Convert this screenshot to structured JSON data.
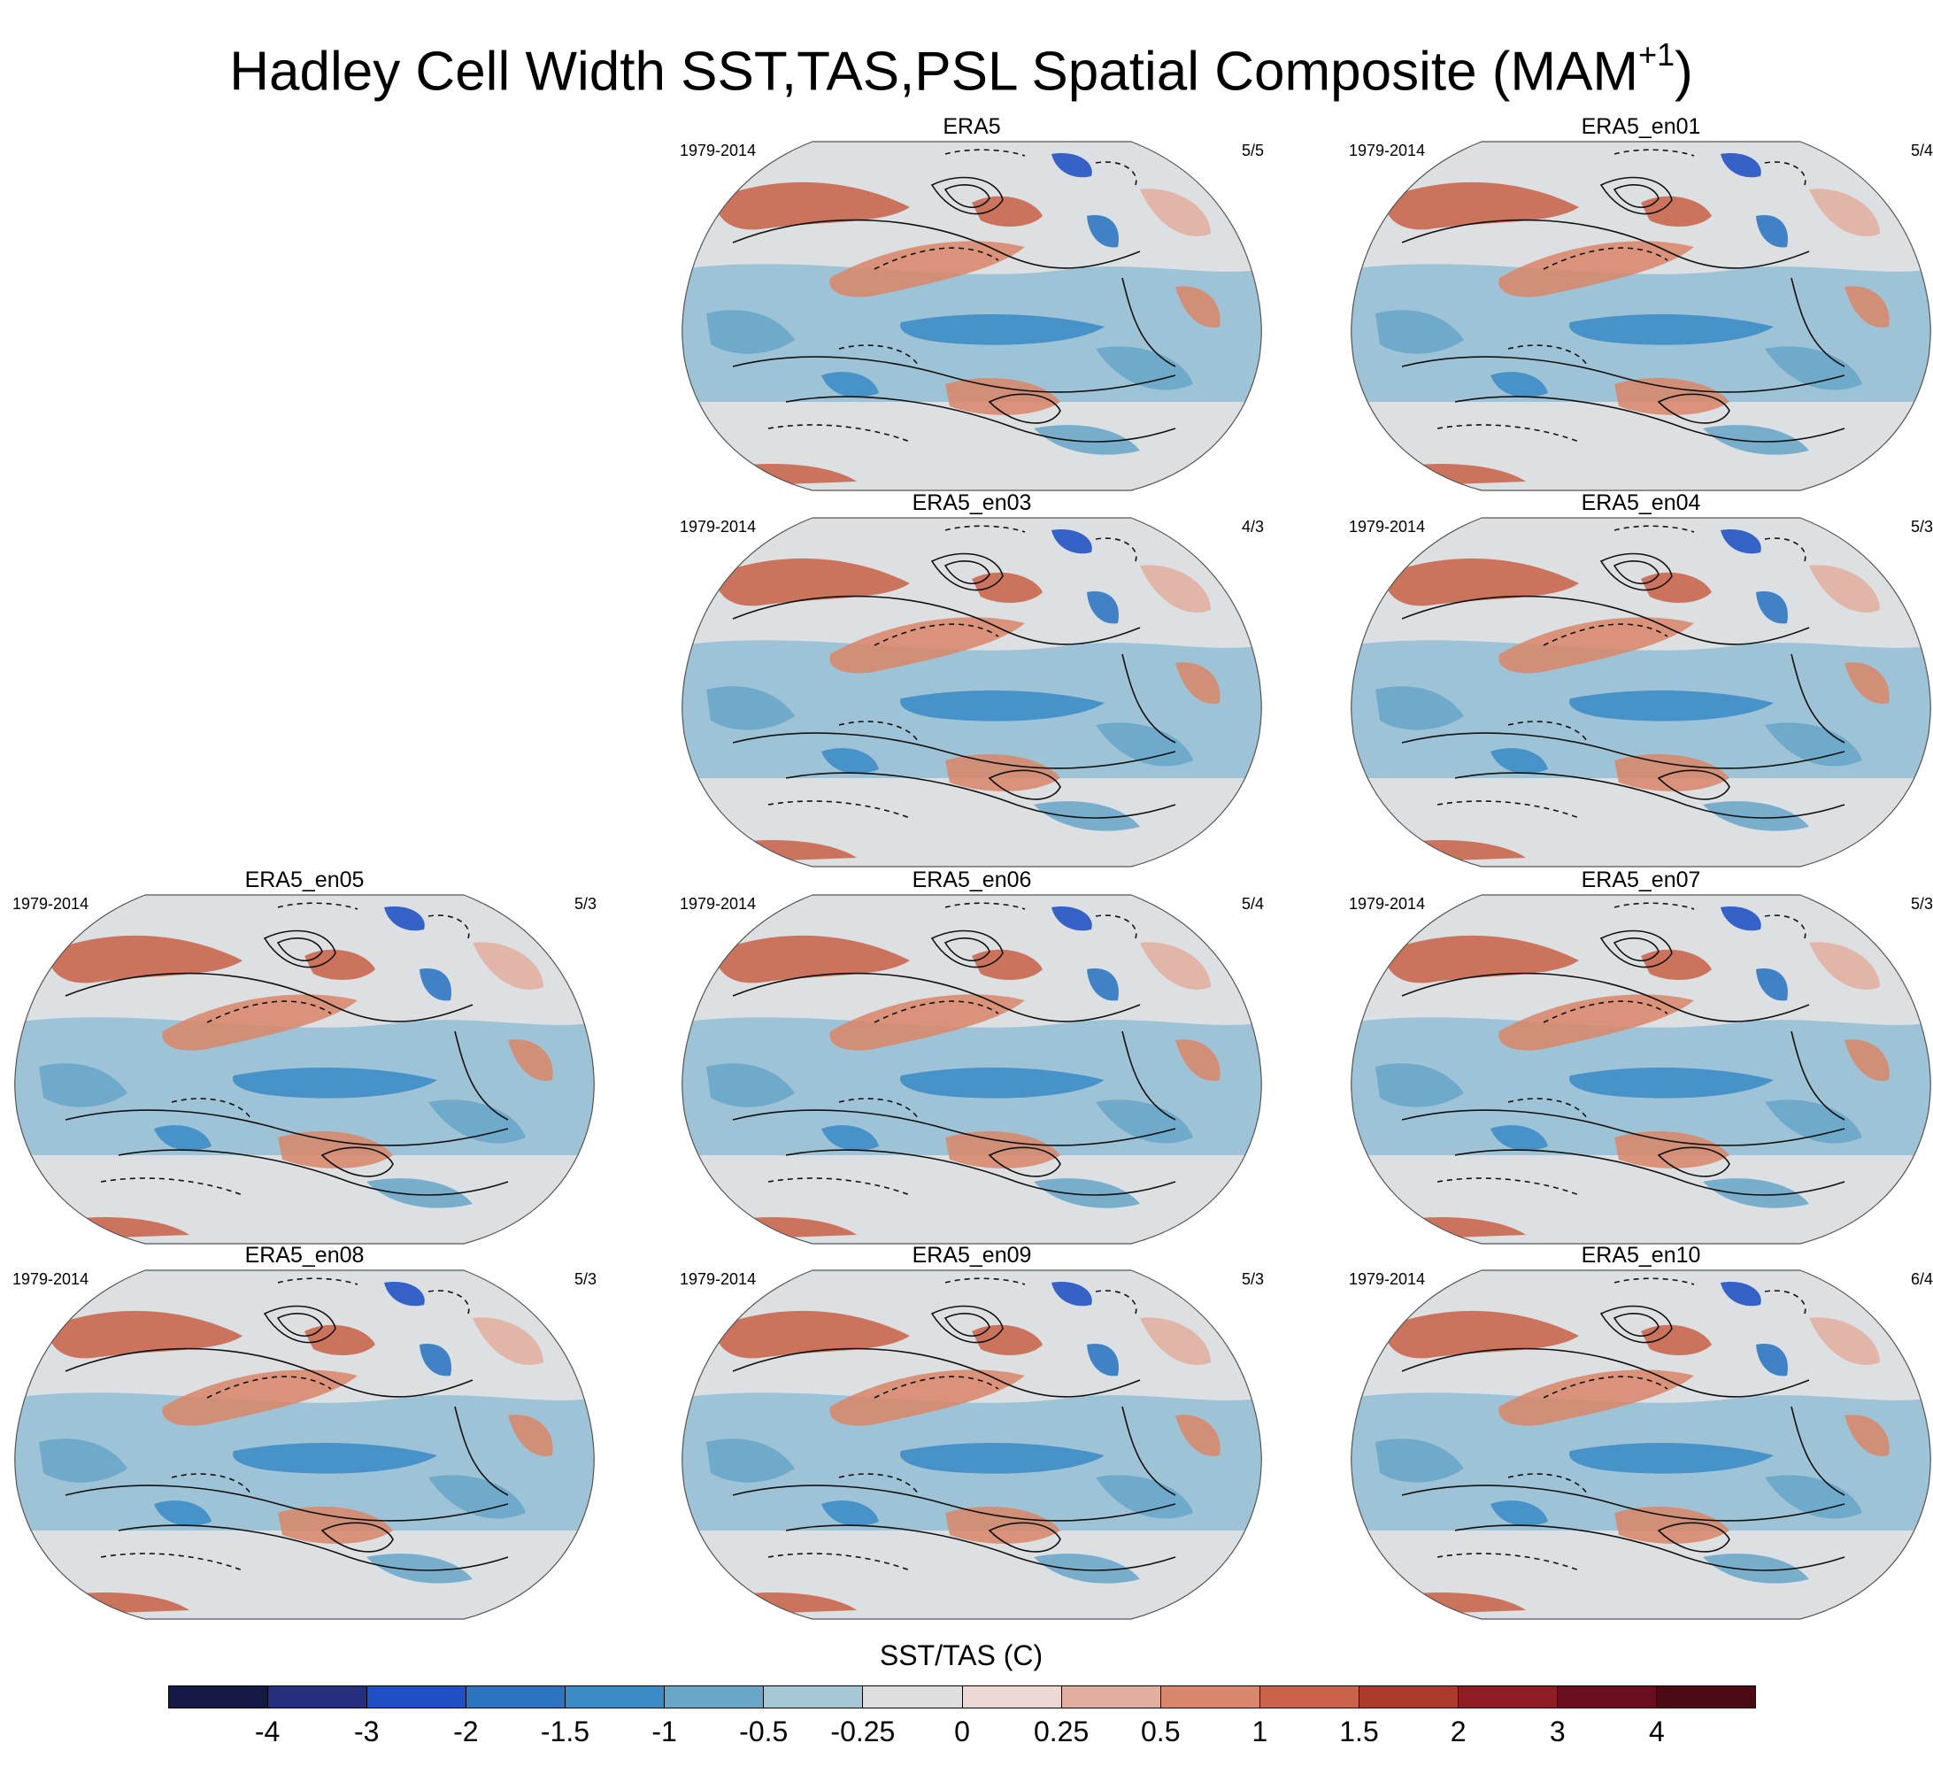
{
  "title": {
    "main": "Hadley Cell Width SST,TAS,PSL Spatial Composite (MAM",
    "sup": "+1",
    "close": ")"
  },
  "panels": [
    {
      "name": "ERA5",
      "period": "1979-2014",
      "ratio": "5/5"
    },
    {
      "name": "ERA5_en01",
      "period": "1979-2014",
      "ratio": "5/4"
    },
    {
      "name": "ERA5_en03",
      "period": "1979-2014",
      "ratio": "4/3"
    },
    {
      "name": "ERA5_en04",
      "period": "1979-2014",
      "ratio": "5/3"
    },
    {
      "name": "ERA5_en05",
      "period": "1979-2014",
      "ratio": "5/3"
    },
    {
      "name": "ERA5_en06",
      "period": "1979-2014",
      "ratio": "5/4"
    },
    {
      "name": "ERA5_en07",
      "period": "1979-2014",
      "ratio": "5/3"
    },
    {
      "name": "ERA5_en08",
      "period": "1979-2014",
      "ratio": "5/3"
    },
    {
      "name": "ERA5_en09",
      "period": "1979-2014",
      "ratio": "5/3"
    },
    {
      "name": "ERA5_en10",
      "period": "1979-2014",
      "ratio": "6/4"
    }
  ],
  "colorbar": {
    "label": "SST/TAS (C)",
    "ticks": [
      "-4",
      "-3",
      "-2",
      "-1.5",
      "-1",
      "-0.5",
      "-0.25",
      "0",
      "0.25",
      "0.5",
      "1",
      "1.5",
      "2",
      "3",
      "4"
    ],
    "colors": [
      "#141a45",
      "#262f7e",
      "#1f4fc2",
      "#2a74c0",
      "#3b8bc6",
      "#6aa6c8",
      "#a6c8d4",
      "#dcdfe1",
      "#eed8d4",
      "#e2aea0",
      "#d9876b",
      "#c9634a",
      "#ac3a2b",
      "#901d26",
      "#6b0f20",
      "#4b0a14"
    ]
  }
}
